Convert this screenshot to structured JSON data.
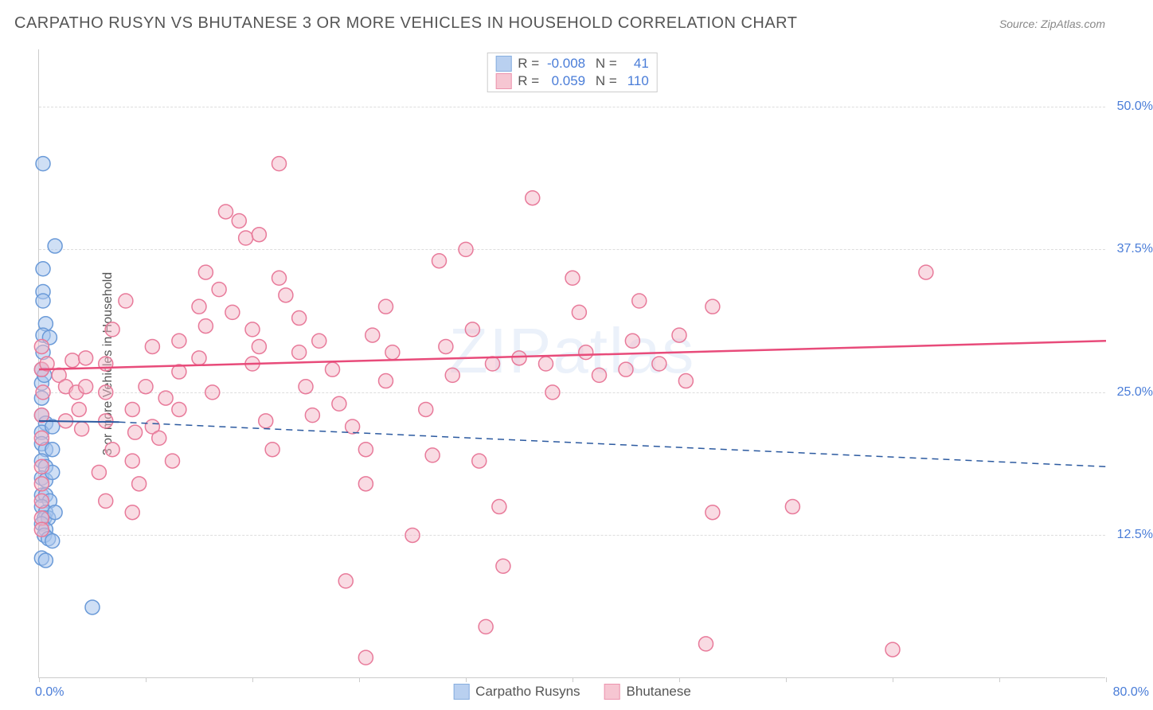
{
  "header": {
    "title": "CARPATHO RUSYN VS BHUTANESE 3 OR MORE VEHICLES IN HOUSEHOLD CORRELATION CHART",
    "source": "Source: ZipAtlas.com"
  },
  "chart": {
    "type": "scatter",
    "y_label": "3 or more Vehicles in Household",
    "xlim": [
      0,
      80
    ],
    "ylim": [
      0,
      55
    ],
    "x_tick_positions": [
      0,
      8,
      16,
      24,
      32,
      40,
      48,
      56,
      64,
      72,
      80
    ],
    "x_axis_min_label": "0.0%",
    "x_axis_max_label": "80.0%",
    "y_ticks": [
      {
        "v": 12.5,
        "label": "12.5%"
      },
      {
        "v": 25.0,
        "label": "25.0%"
      },
      {
        "v": 37.5,
        "label": "37.5%"
      },
      {
        "v": 50.0,
        "label": "50.0%"
      }
    ],
    "background_color": "#ffffff",
    "grid_color": "#dddddd",
    "axis_color": "#cccccc",
    "tick_label_color": "#4a7dd8",
    "watermark": "ZIPatlas",
    "marker_radius": 9,
    "marker_stroke_width": 1.5,
    "series": [
      {
        "name": "Carpatho Rusyns",
        "fill": "#a8c5ed",
        "stroke": "#6a9ad8",
        "fill_opacity": 0.55,
        "r_value": "-0.008",
        "n_value": "41",
        "trend": {
          "start": {
            "x": 0,
            "y": 22.5
          },
          "solid_end": {
            "x": 6,
            "y": 22.4
          },
          "dashed_end": {
            "x": 80,
            "y": 18.5
          },
          "stroke": "#2c5aa0",
          "width": 2
        },
        "points": [
          [
            0.3,
            45.0
          ],
          [
            0.3,
            35.8
          ],
          [
            0.3,
            33.8
          ],
          [
            1.2,
            37.8
          ],
          [
            0.3,
            33.0
          ],
          [
            0.5,
            31.0
          ],
          [
            0.3,
            30.0
          ],
          [
            0.3,
            28.5
          ],
          [
            0.8,
            29.8
          ],
          [
            0.2,
            27.0
          ],
          [
            0.2,
            25.8
          ],
          [
            0.4,
            26.5
          ],
          [
            0.2,
            24.5
          ],
          [
            0.2,
            23.0
          ],
          [
            0.5,
            22.3
          ],
          [
            0.2,
            21.5
          ],
          [
            0.2,
            20.5
          ],
          [
            0.5,
            20.0
          ],
          [
            0.2,
            19.0
          ],
          [
            0.5,
            18.5
          ],
          [
            0.2,
            17.5
          ],
          [
            0.5,
            17.3
          ],
          [
            0.2,
            16.0
          ],
          [
            0.5,
            16.0
          ],
          [
            0.8,
            15.5
          ],
          [
            0.2,
            15.0
          ],
          [
            0.5,
            14.5
          ],
          [
            0.4,
            14.0
          ],
          [
            0.7,
            14.0
          ],
          [
            0.2,
            13.5
          ],
          [
            0.5,
            13.0
          ],
          [
            0.4,
            12.5
          ],
          [
            0.7,
            12.2
          ],
          [
            1.0,
            12.0
          ],
          [
            0.2,
            10.5
          ],
          [
            0.5,
            10.3
          ],
          [
            4.0,
            6.2
          ],
          [
            1.2,
            14.5
          ],
          [
            1.0,
            18.0
          ],
          [
            1.0,
            20.0
          ],
          [
            1.0,
            22.0
          ]
        ]
      },
      {
        "name": "Bhutanese",
        "fill": "#f4b8c8",
        "stroke": "#e87a9a",
        "fill_opacity": 0.5,
        "r_value": "0.059",
        "n_value": "110",
        "trend": {
          "start": {
            "x": 0,
            "y": 27.0
          },
          "solid_end": {
            "x": 80,
            "y": 29.5
          },
          "dashed_end": null,
          "stroke": "#e84b7a",
          "width": 2.5
        },
        "points": [
          [
            0.2,
            29.0
          ],
          [
            0.2,
            27.0
          ],
          [
            0.3,
            25.0
          ],
          [
            0.2,
            23.0
          ],
          [
            0.2,
            21.0
          ],
          [
            0.6,
            27.5
          ],
          [
            1.5,
            26.5
          ],
          [
            0.2,
            18.5
          ],
          [
            0.2,
            17.0
          ],
          [
            0.2,
            15.5
          ],
          [
            0.2,
            14.0
          ],
          [
            0.2,
            13.0
          ],
          [
            2.0,
            25.5
          ],
          [
            2.5,
            27.8
          ],
          [
            2.0,
            22.5
          ],
          [
            2.8,
            25.0
          ],
          [
            3.0,
            23.5
          ],
          [
            3.2,
            21.8
          ],
          [
            3.5,
            28.0
          ],
          [
            3.5,
            25.5
          ],
          [
            5.5,
            30.5
          ],
          [
            5.0,
            27.5
          ],
          [
            5.0,
            25.0
          ],
          [
            5.0,
            22.5
          ],
          [
            5.5,
            20.0
          ],
          [
            4.5,
            18.0
          ],
          [
            5.0,
            15.5
          ],
          [
            7.0,
            23.5
          ],
          [
            7.2,
            21.5
          ],
          [
            7.0,
            19.0
          ],
          [
            7.5,
            17.0
          ],
          [
            7.0,
            14.5
          ],
          [
            8.5,
            22.0
          ],
          [
            8.0,
            25.5
          ],
          [
            8.5,
            29.0
          ],
          [
            6.5,
            33.0
          ],
          [
            9.5,
            24.5
          ],
          [
            9.0,
            21.0
          ],
          [
            10.0,
            19.0
          ],
          [
            10.5,
            29.5
          ],
          [
            10.5,
            26.8
          ],
          [
            10.5,
            23.5
          ],
          [
            12.0,
            32.5
          ],
          [
            12.5,
            30.8
          ],
          [
            12.5,
            35.5
          ],
          [
            12.0,
            28.0
          ],
          [
            13.0,
            25.0
          ],
          [
            13.5,
            34.0
          ],
          [
            14.5,
            32.0
          ],
          [
            15.0,
            40.0
          ],
          [
            15.5,
            38.5
          ],
          [
            16.0,
            30.5
          ],
          [
            16.5,
            29.0
          ],
          [
            16.0,
            27.5
          ],
          [
            17.0,
            22.5
          ],
          [
            17.5,
            20.0
          ],
          [
            16.5,
            38.8
          ],
          [
            18.0,
            45.0
          ],
          [
            18.0,
            35.0
          ],
          [
            18.5,
            33.5
          ],
          [
            19.5,
            31.5
          ],
          [
            19.5,
            28.5
          ],
          [
            20.0,
            25.5
          ],
          [
            20.5,
            23.0
          ],
          [
            21.0,
            29.5
          ],
          [
            22.0,
            27.0
          ],
          [
            22.5,
            24.0
          ],
          [
            23.5,
            22.0
          ],
          [
            24.5,
            20.0
          ],
          [
            24.5,
            17.0
          ],
          [
            23.0,
            8.5
          ],
          [
            24.5,
            1.8
          ],
          [
            25.0,
            30.0
          ],
          [
            26.0,
            32.5
          ],
          [
            26.5,
            28.5
          ],
          [
            29.0,
            23.5
          ],
          [
            29.5,
            19.5
          ],
          [
            30.0,
            36.5
          ],
          [
            30.5,
            29.0
          ],
          [
            31.0,
            26.5
          ],
          [
            32.0,
            37.5
          ],
          [
            32.5,
            30.5
          ],
          [
            33.0,
            19.0
          ],
          [
            33.5,
            4.5
          ],
          [
            34.0,
            27.5
          ],
          [
            34.5,
            15.0
          ],
          [
            34.8,
            9.8
          ],
          [
            36.0,
            28.0
          ],
          [
            37.0,
            42.0
          ],
          [
            38.0,
            27.5
          ],
          [
            38.5,
            25.0
          ],
          [
            40.0,
            35.0
          ],
          [
            41.0,
            28.5
          ],
          [
            42.0,
            26.5
          ],
          [
            44.0,
            27.0
          ],
          [
            44.5,
            29.5
          ],
          [
            45.0,
            33.0
          ],
          [
            46.5,
            27.5
          ],
          [
            48.0,
            30.0
          ],
          [
            48.5,
            26.0
          ],
          [
            50.5,
            32.5
          ],
          [
            50.5,
            14.5
          ],
          [
            50.0,
            3.0
          ],
          [
            64.0,
            2.5
          ],
          [
            56.5,
            15.0
          ],
          [
            66.5,
            35.5
          ],
          [
            14.0,
            40.8
          ],
          [
            26.0,
            26.0
          ],
          [
            28.0,
            12.5
          ],
          [
            40.5,
            32.0
          ]
        ]
      }
    ]
  }
}
